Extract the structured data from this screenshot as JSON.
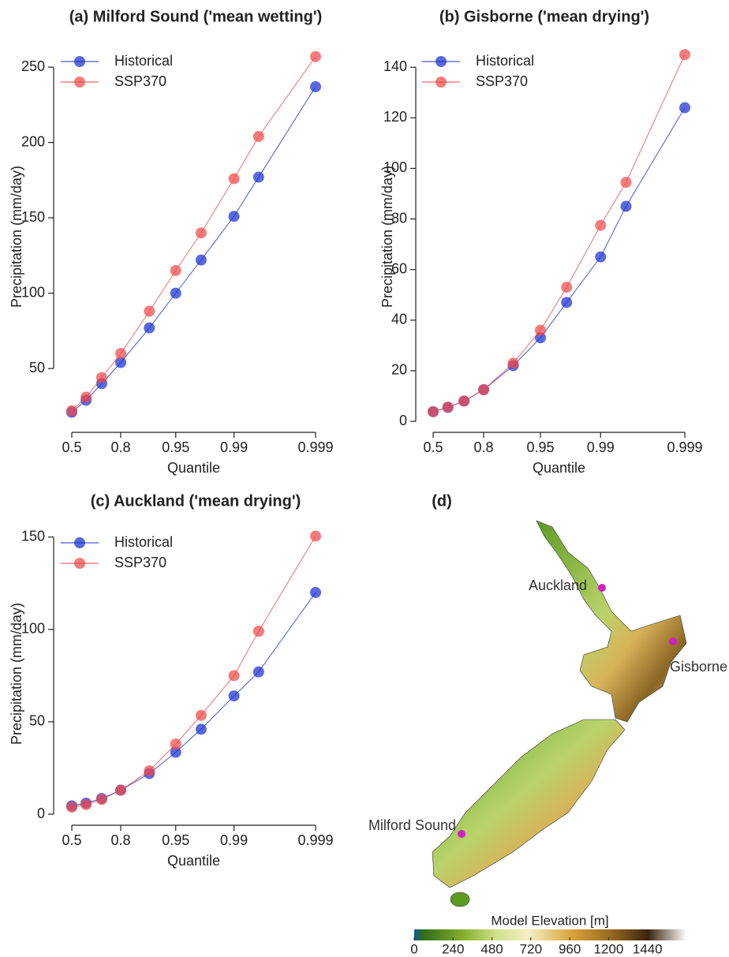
{
  "chart_data": [
    {
      "type": "line",
      "title": "(a) Milford Sound ('mean wetting')",
      "xlabel": "Quantile",
      "ylabel": "Precipitation (mm/day)",
      "xscale": "logit",
      "x": [
        0.5,
        0.6,
        0.7,
        0.8,
        0.9,
        0.95,
        0.975,
        0.99,
        0.995,
        0.999
      ],
      "series": [
        {
          "name": "Historical",
          "color": "#1a2fd0",
          "values": [
            21,
            29,
            40,
            54,
            77,
            100,
            122,
            151,
            177,
            237
          ]
        },
        {
          "name": "SSP370",
          "color": "#f04a4a",
          "values": [
            22,
            31,
            44,
            60,
            88,
            115,
            140,
            176,
            204,
            257
          ]
        }
      ],
      "xlim": [
        0.5,
        0.999
      ],
      "xticks": [
        0.5,
        0.8,
        0.95,
        0.99,
        0.999
      ],
      "ylim": [
        15,
        260
      ],
      "yticks": [
        50,
        100,
        150,
        200,
        250
      ],
      "legend": "upper left"
    },
    {
      "type": "line",
      "title": "(b) Gisborne ('mean drying')",
      "xlabel": "Quantile",
      "ylabel": "Precipitation (mm/day)",
      "xscale": "logit",
      "x": [
        0.5,
        0.6,
        0.7,
        0.8,
        0.9,
        0.95,
        0.975,
        0.99,
        0.995,
        0.999
      ],
      "series": [
        {
          "name": "Historical",
          "color": "#1a2fd0",
          "values": [
            3.8,
            5.5,
            8,
            12.5,
            22,
            33,
            47,
            65,
            85,
            124
          ]
        },
        {
          "name": "SSP370",
          "color": "#f04a4a",
          "values": [
            3.8,
            5.6,
            8,
            12.5,
            23,
            36,
            53,
            77.5,
            94.5,
            145
          ]
        }
      ],
      "xlim": [
        0.5,
        0.999
      ],
      "xticks": [
        0.5,
        0.8,
        0.95,
        0.99,
        0.999
      ],
      "ylim": [
        0,
        146
      ],
      "yticks": [
        0,
        20,
        40,
        60,
        80,
        100,
        120,
        140
      ],
      "legend": "upper left"
    },
    {
      "type": "line",
      "title": "(c) Auckland ('mean drying')",
      "xlabel": "Quantile",
      "ylabel": "Precipitation (mm/day)",
      "xscale": "logit",
      "x": [
        0.5,
        0.6,
        0.7,
        0.8,
        0.9,
        0.95,
        0.975,
        0.99,
        0.995,
        0.999
      ],
      "series": [
        {
          "name": "Historical",
          "color": "#1a2fd0",
          "values": [
            4.5,
            6,
            8.5,
            13,
            22,
            33.5,
            46,
            64,
            77,
            120
          ]
        },
        {
          "name": "SSP370",
          "color": "#f04a4a",
          "values": [
            3.8,
            5.2,
            8,
            13,
            23.5,
            38,
            53.5,
            75,
            99,
            150.5
          ]
        }
      ],
      "xlim": [
        0.5,
        0.999
      ],
      "xticks": [
        0.5,
        0.8,
        0.95,
        0.99,
        0.999
      ],
      "ylim": [
        0,
        152
      ],
      "yticks": [
        0,
        50,
        100,
        150
      ],
      "legend": "upper left"
    },
    {
      "type": "map",
      "title": "(d)",
      "locations": [
        "Auckland",
        "Gisborne",
        "Milford Sound"
      ],
      "colorbar": {
        "label": "Model Elevation [m]",
        "lim": [
          0,
          1680
        ],
        "ticks": [
          0,
          240,
          480,
          720,
          960,
          1200,
          1440
        ]
      }
    }
  ]
}
